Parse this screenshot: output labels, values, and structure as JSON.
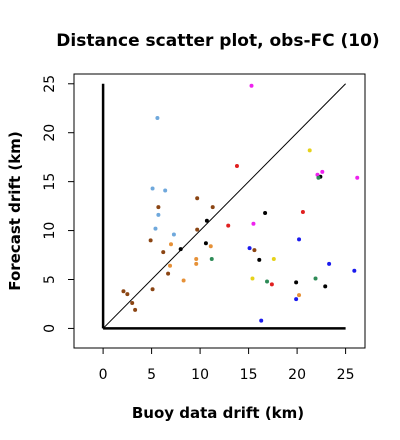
{
  "chart_data": {
    "type": "scatter",
    "title": "Distance scatter plot, obs-FC (10)",
    "xlabel": "Buoy data drift (km)",
    "ylabel": "Forecast drift (km)",
    "xlim": [
      -3,
      27
    ],
    "ylim": [
      -2,
      26
    ],
    "xticks": [
      "0",
      "5",
      "10",
      "15",
      "20",
      "25"
    ],
    "yticks": [
      "0",
      "5",
      "10",
      "15",
      "20",
      "25"
    ],
    "xtick_values": [
      0,
      5,
      10,
      15,
      20,
      25
    ],
    "ytick_values": [
      0,
      5,
      10,
      15,
      20,
      25
    ],
    "grid": false,
    "points": [
      {
        "x": 5.6,
        "y": 21.5,
        "color": "#6fa8dc"
      },
      {
        "x": 5.1,
        "y": 14.3,
        "color": "#6fa8dc"
      },
      {
        "x": 6.4,
        "y": 14.1,
        "color": "#6fa8dc"
      },
      {
        "x": 5.7,
        "y": 11.6,
        "color": "#6fa8dc"
      },
      {
        "x": 5.4,
        "y": 10.2,
        "color": "#6fa8dc"
      },
      {
        "x": 7.3,
        "y": 9.6,
        "color": "#6fa8dc"
      },
      {
        "x": 5.7,
        "y": 12.4,
        "color": "#8b4513"
      },
      {
        "x": 9.7,
        "y": 13.3,
        "color": "#8b4513"
      },
      {
        "x": 11.3,
        "y": 12.4,
        "color": "#8b4513"
      },
      {
        "x": 9.7,
        "y": 10.1,
        "color": "#8b4513"
      },
      {
        "x": 4.9,
        "y": 9.0,
        "color": "#8b4513"
      },
      {
        "x": 6.2,
        "y": 7.8,
        "color": "#8b4513"
      },
      {
        "x": 6.7,
        "y": 5.6,
        "color": "#8b4513"
      },
      {
        "x": 2.1,
        "y": 3.8,
        "color": "#8b4513"
      },
      {
        "x": 2.5,
        "y": 3.5,
        "color": "#8b4513"
      },
      {
        "x": 3.0,
        "y": 2.6,
        "color": "#8b4513"
      },
      {
        "x": 3.3,
        "y": 1.9,
        "color": "#8b4513"
      },
      {
        "x": 5.1,
        "y": 4.0,
        "color": "#8b4513"
      },
      {
        "x": 15.6,
        "y": 8.0,
        "color": "#8b4513"
      },
      {
        "x": 7.0,
        "y": 8.6,
        "color": "#e69138"
      },
      {
        "x": 11.1,
        "y": 8.4,
        "color": "#e69138"
      },
      {
        "x": 6.9,
        "y": 6.4,
        "color": "#e69138"
      },
      {
        "x": 9.6,
        "y": 6.6,
        "color": "#e69138"
      },
      {
        "x": 9.6,
        "y": 7.1,
        "color": "#e69138"
      },
      {
        "x": 8.3,
        "y": 4.9,
        "color": "#e69138"
      },
      {
        "x": 20.2,
        "y": 3.4,
        "color": "#e69138"
      },
      {
        "x": 8.0,
        "y": 8.1,
        "color": "#000000"
      },
      {
        "x": 10.7,
        "y": 11.0,
        "color": "#000000"
      },
      {
        "x": 10.6,
        "y": 8.7,
        "color": "#000000"
      },
      {
        "x": 16.1,
        "y": 7.0,
        "color": "#000000"
      },
      {
        "x": 16.7,
        "y": 11.8,
        "color": "#000000"
      },
      {
        "x": 19.9,
        "y": 4.7,
        "color": "#000000"
      },
      {
        "x": 22.9,
        "y": 4.3,
        "color": "#000000"
      },
      {
        "x": 22.4,
        "y": 15.5,
        "color": "#000000"
      },
      {
        "x": 13.8,
        "y": 16.6,
        "color": "#e02020"
      },
      {
        "x": 12.9,
        "y": 10.5,
        "color": "#e02020"
      },
      {
        "x": 17.4,
        "y": 4.5,
        "color": "#e02020"
      },
      {
        "x": 20.6,
        "y": 11.9,
        "color": "#e02020"
      },
      {
        "x": 15.3,
        "y": 24.8,
        "color": "#ee22ee"
      },
      {
        "x": 15.5,
        "y": 10.7,
        "color": "#ee22ee"
      },
      {
        "x": 22.1,
        "y": 15.7,
        "color": "#ee22ee"
      },
      {
        "x": 22.6,
        "y": 16.0,
        "color": "#ee22ee"
      },
      {
        "x": 26.2,
        "y": 15.4,
        "color": "#ee22ee"
      },
      {
        "x": 21.3,
        "y": 18.2,
        "color": "#e6d21a"
      },
      {
        "x": 15.4,
        "y": 5.1,
        "color": "#e6d21a"
      },
      {
        "x": 17.6,
        "y": 7.1,
        "color": "#e6d21a"
      },
      {
        "x": 11.2,
        "y": 7.1,
        "color": "#2e8b57"
      },
      {
        "x": 16.9,
        "y": 4.8,
        "color": "#2e8b57"
      },
      {
        "x": 21.9,
        "y": 5.1,
        "color": "#2e8b57"
      },
      {
        "x": 22.2,
        "y": 15.4,
        "color": "#2e8b57"
      },
      {
        "x": 15.1,
        "y": 8.2,
        "color": "#1a1aee"
      },
      {
        "x": 16.3,
        "y": 0.8,
        "color": "#1a1aee"
      },
      {
        "x": 20.2,
        "y": 9.1,
        "color": "#1a1aee"
      },
      {
        "x": 19.9,
        "y": 3.0,
        "color": "#1a1aee"
      },
      {
        "x": 23.3,
        "y": 6.6,
        "color": "#1a1aee"
      },
      {
        "x": 25.9,
        "y": 5.9,
        "color": "#1a1aee"
      }
    ]
  }
}
